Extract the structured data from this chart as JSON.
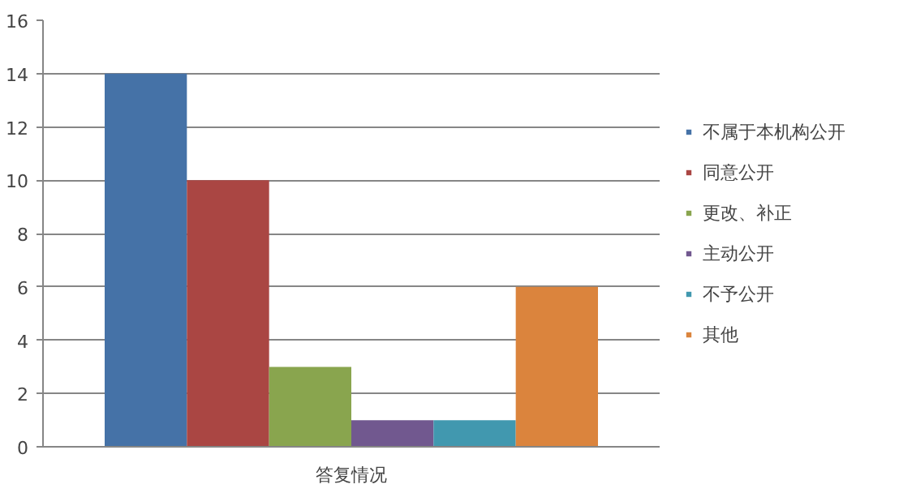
{
  "chart_data": {
    "type": "bar",
    "categories": [
      "答复情况"
    ],
    "series": [
      {
        "name": "不属于本机构公开",
        "color": "#4572a7",
        "values": [
          14
        ]
      },
      {
        "name": "同意公开",
        "color": "#aa4643",
        "values": [
          10
        ]
      },
      {
        "name": "更改、补正",
        "color": "#89a54e",
        "values": [
          3
        ]
      },
      {
        "name": "主动公开",
        "color": "#71588f",
        "values": [
          1
        ]
      },
      {
        "name": "不予公开",
        "color": "#4198af",
        "values": [
          1
        ]
      },
      {
        "name": "其他",
        "color": "#db843d",
        "values": [
          6
        ]
      }
    ],
    "ylim": [
      0,
      16
    ],
    "yticks": [
      0,
      2,
      4,
      6,
      8,
      10,
      12,
      14,
      16
    ],
    "grid": "y",
    "legend": "right"
  }
}
